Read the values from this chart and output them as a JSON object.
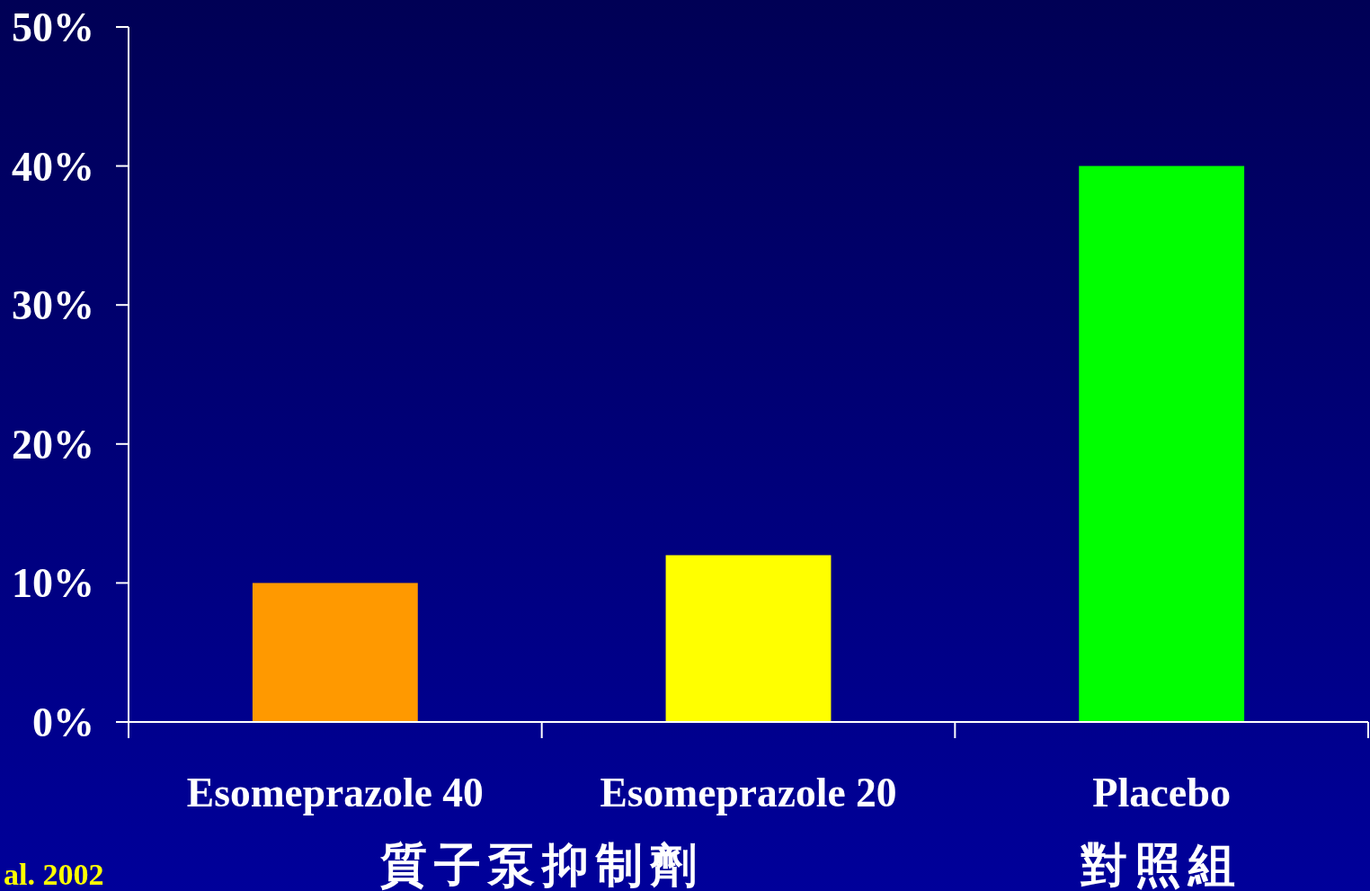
{
  "chart_data": {
    "type": "bar",
    "categories": [
      "Esomeprazole 40",
      "Esomeprazole 20",
      "Placebo"
    ],
    "values": [
      10,
      12,
      40
    ],
    "colors": [
      "#ff9900",
      "#ffff00",
      "#00ff00"
    ],
    "ylim": [
      0,
      50
    ],
    "yticks": [
      {
        "value": 0,
        "label": "0%"
      },
      {
        "value": 10,
        "label": "10%"
      },
      {
        "value": 20,
        "label": "20%"
      },
      {
        "value": 30,
        "label": "30%"
      },
      {
        "value": 40,
        "label": "40%"
      },
      {
        "value": 50,
        "label": "50%"
      }
    ],
    "grid": false,
    "annotations": [
      "質子泵抑制劑",
      "對照組",
      "al. 2002"
    ]
  }
}
